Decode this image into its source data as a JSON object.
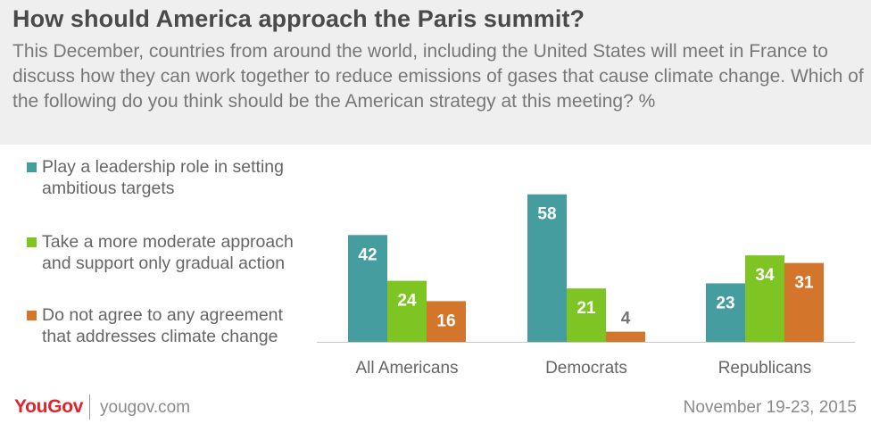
{
  "title": "How should America approach the Paris summit?",
  "subtitle": "This December, countries from around the world, including the United States will meet in France to discuss how they can work together to reduce emissions of gases that cause climate change. Which of the following do you think should be the American strategy at this meeting? %",
  "footer": {
    "logo": "YouGov",
    "url": "yougov.com",
    "date": "November 19-23, 2015"
  },
  "chart_data": {
    "type": "bar",
    "categories": [
      "All Americans",
      "Democrats",
      "Republicans"
    ],
    "series": [
      {
        "name": "Play a leadership role in setting ambitious targets",
        "color": "#469d9f",
        "values": [
          42,
          58,
          23
        ]
      },
      {
        "name": "Take a more moderate approach and support only gradual action",
        "color": "#7ec524",
        "values": [
          24,
          21,
          34
        ]
      },
      {
        "name": "Do not agree to any agreement that addresses climate change",
        "color": "#d4752c",
        "values": [
          16,
          4,
          31
        ]
      }
    ],
    "title": "How should America approach the Paris summit?",
    "xlabel": "",
    "ylabel": "",
    "ylim": [
      0,
      60
    ],
    "grid": false,
    "legend": "left"
  }
}
